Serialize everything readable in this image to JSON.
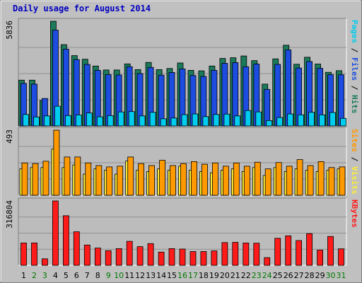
{
  "chart_data": {
    "type": "bar",
    "title": "Daily usage for August 2014",
    "categories": [
      "1",
      "2",
      "3",
      "4",
      "5",
      "6",
      "7",
      "8",
      "9",
      "10",
      "11",
      "12",
      "13",
      "14",
      "15",
      "16",
      "17",
      "18",
      "19",
      "20",
      "21",
      "22",
      "23",
      "24",
      "25",
      "26",
      "27",
      "28",
      "29",
      "30",
      "31"
    ],
    "weekend_days": [
      "2",
      "3",
      "9",
      "10",
      "16",
      "17",
      "23",
      "24",
      "30",
      "31"
    ],
    "panels": [
      {
        "axis_max_label": "5836",
        "ymax": 5836,
        "right_label_parts": [
          "Pages",
          "Files",
          "Hits"
        ],
        "series": [
          {
            "name": "Hits",
            "color": "#1a7a5a",
            "values": [
              2550,
              2550,
              1420,
              5836,
              4530,
              3920,
              3720,
              3340,
              3120,
              3120,
              3460,
              3140,
              3540,
              3140,
              3200,
              3510,
              3100,
              3070,
              3340,
              3760,
              3800,
              3900,
              3640,
              2330,
              3740,
              4500,
              3440,
              3830,
              3450,
              2990,
              3080
            ]
          },
          {
            "name": "Files",
            "color": "#1c4ce0",
            "values": [
              2370,
              2330,
              1530,
              5340,
              4280,
              3700,
              3430,
              3100,
              2860,
              2840,
              3300,
              2920,
              3260,
              2830,
              2980,
              3180,
              2810,
              2760,
              3100,
              3490,
              3530,
              3300,
              3450,
              2040,
              3430,
              4240,
              3230,
              3590,
              3210,
              2860,
              2850
            ]
          },
          {
            "name": "Pages",
            "color": "#00ccee",
            "values": [
              640,
              500,
              560,
              1100,
              580,
              610,
              720,
              510,
              570,
              780,
              800,
              560,
              760,
              400,
              440,
              630,
              670,
              520,
              640,
              660,
              560,
              860,
              780,
              300,
              470,
              670,
              620,
              760,
              620,
              750,
              420
            ]
          }
        ]
      },
      {
        "axis_max_label": "493",
        "ymax": 493,
        "right_label_parts": [
          "Sites",
          "Visits"
        ],
        "series": [
          {
            "name": "Visits",
            "color": "#ffee33",
            "values": [
              200,
              210,
              210,
              350,
              210,
              230,
              160,
              200,
              190,
              160,
              260,
              190,
              180,
              200,
              190,
              220,
              190,
              180,
              170,
              190,
              200,
              180,
              210,
              150,
              210,
              180,
              200,
              190,
              180,
              190,
              200
            ]
          },
          {
            "name": "Sites",
            "color": "#ff9900",
            "values": [
              245,
              240,
              258,
              493,
              290,
              290,
              245,
              225,
              215,
              220,
              290,
              240,
              225,
              265,
              225,
              240,
              255,
              235,
              245,
              220,
              245,
              220,
              250,
              200,
              248,
              220,
              270,
              225,
              255,
              210,
              215
            ]
          }
        ]
      },
      {
        "axis_max_label": "316804",
        "ymax": 316804,
        "right_label_parts": [
          "KBytes"
        ],
        "series": [
          {
            "name": "KBytes",
            "color": "#ff1a1a",
            "values": [
              110000,
              110000,
              32000,
              316804,
              244000,
              165000,
              100000,
              85000,
              72000,
              82000,
              118000,
              92000,
              107000,
              65000,
              82000,
              80000,
              68000,
              68000,
              71000,
              112000,
              113000,
              110000,
              109000,
              38000,
              133000,
              145000,
              122000,
              156000,
              75000,
              142000,
              81000
            ]
          }
        ]
      }
    ],
    "colors": {
      "background": "#c0c0c0",
      "plot_background": "#bcbcbc",
      "title": "#0000c0",
      "weekday_label": "#000000",
      "weekend_label": "#007700",
      "grid": "#909090"
    }
  }
}
